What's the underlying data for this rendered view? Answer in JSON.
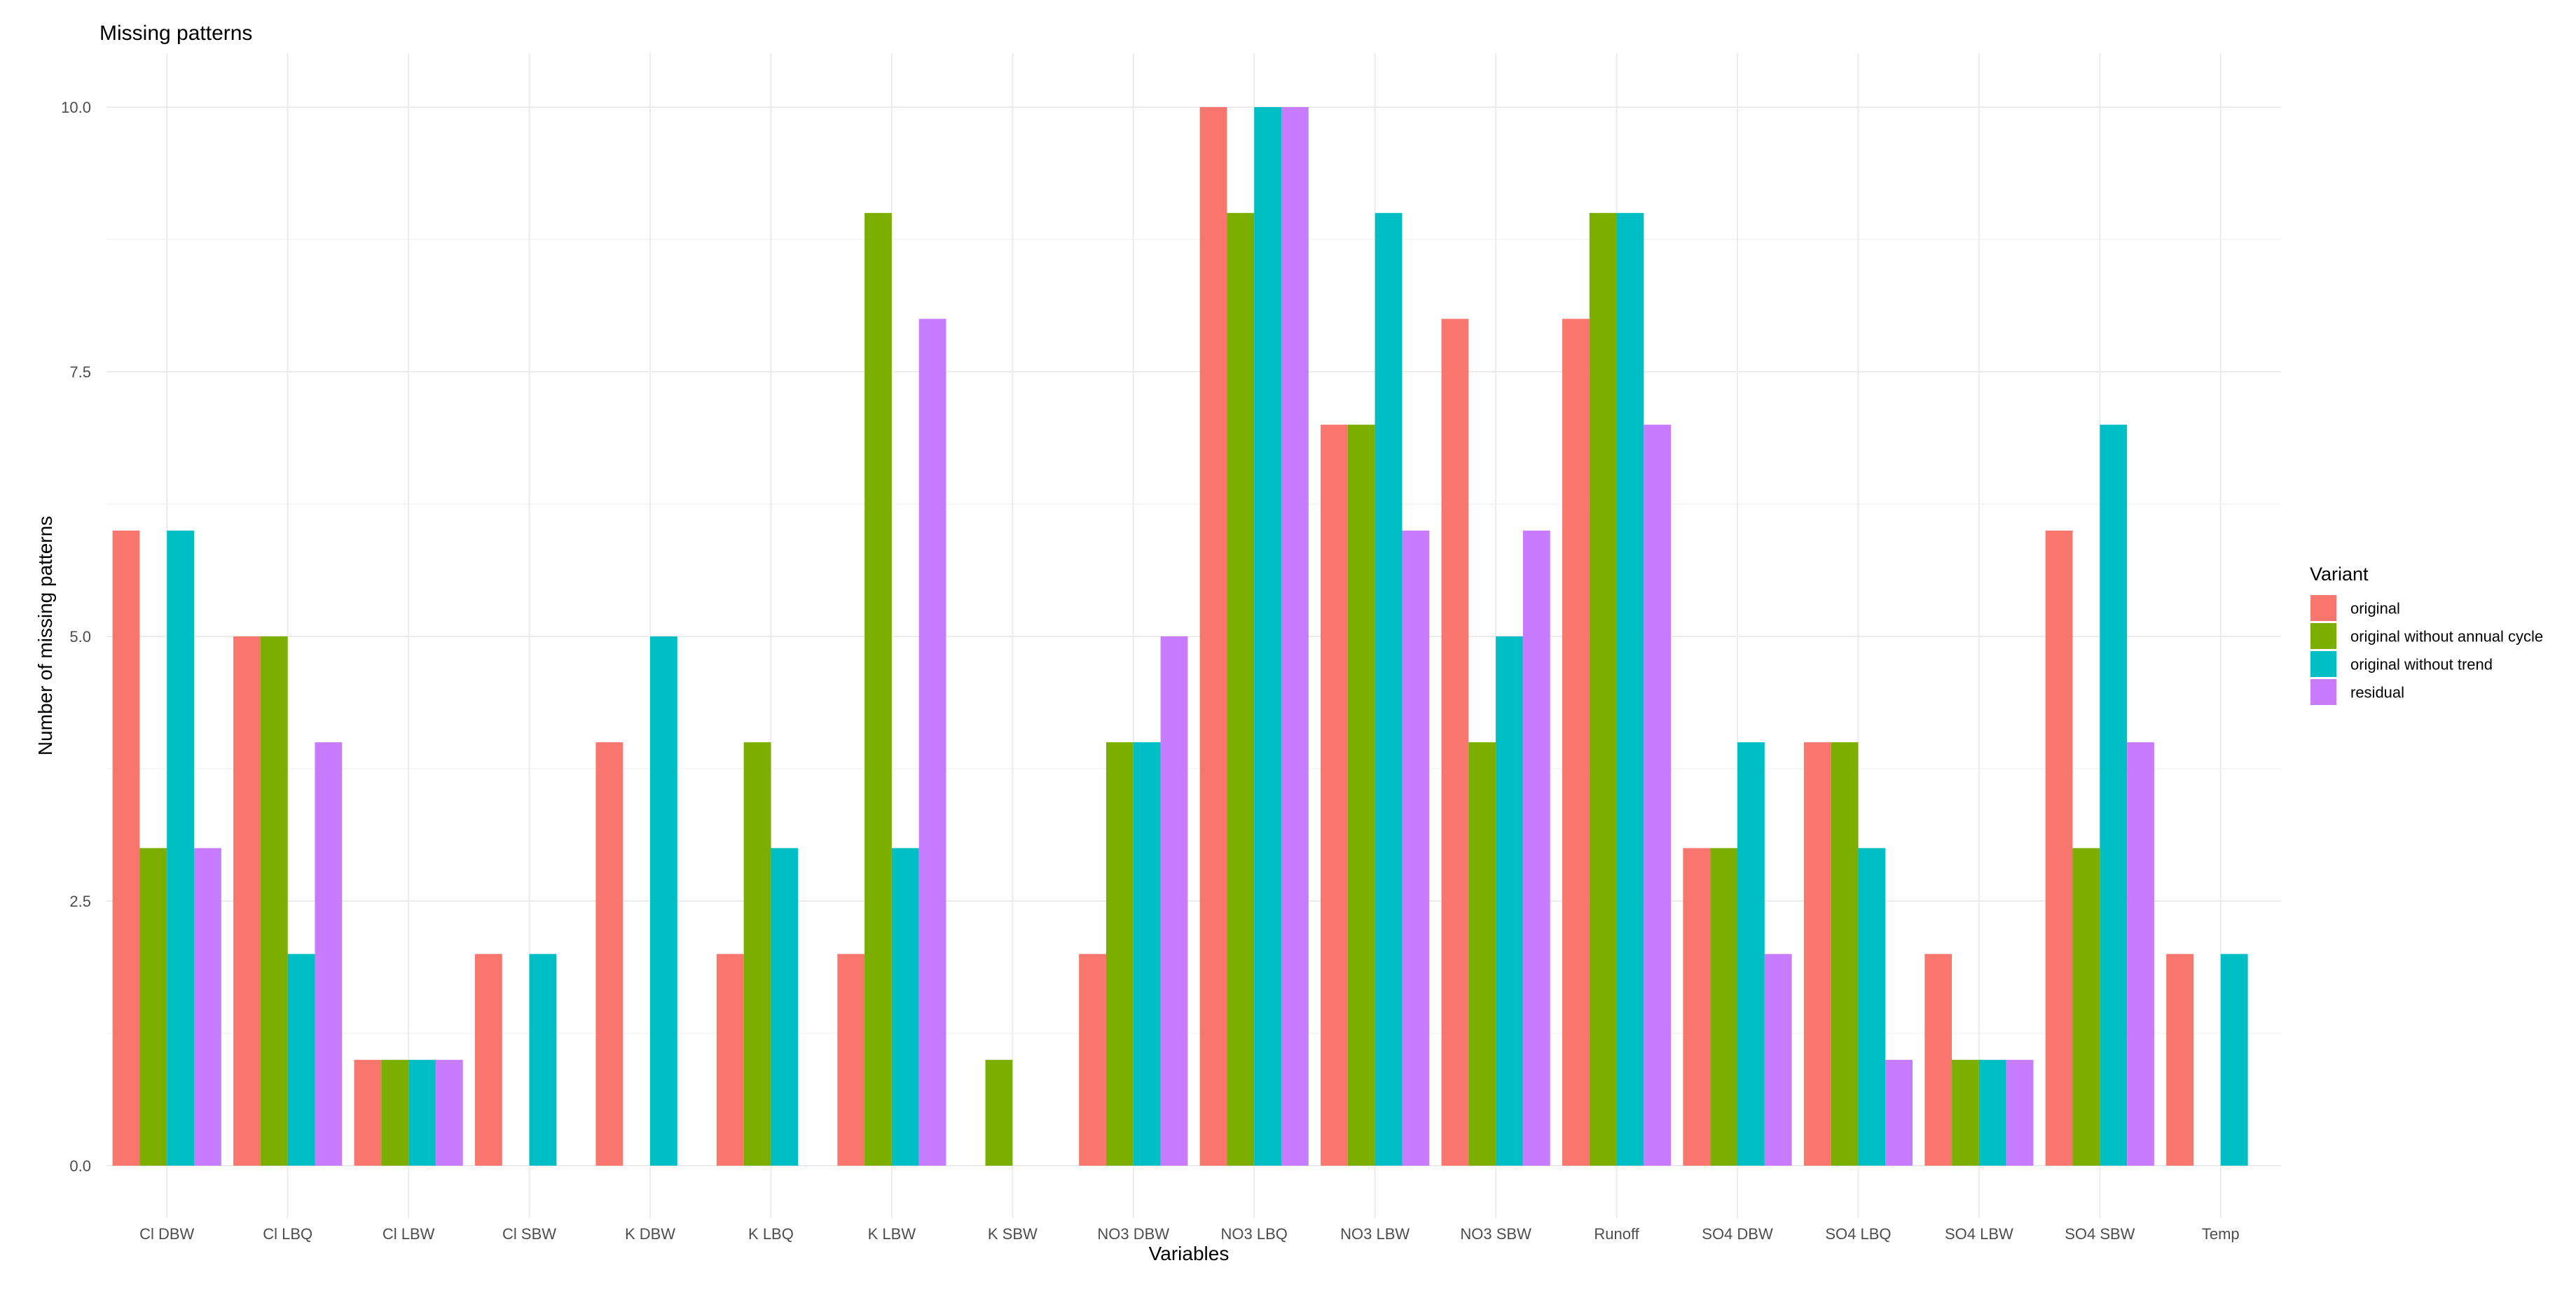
{
  "chart_data": {
    "type": "bar",
    "title": "Missing patterns",
    "xlabel": "Variables",
    "ylabel": "Number of missing patterns",
    "ylim": [
      -0.5,
      10.5
    ],
    "yticks": [
      0.0,
      2.5,
      5.0,
      7.5,
      10.0
    ],
    "ytick_labels": [
      "0.0",
      "2.5",
      "5.0",
      "7.5",
      "10.0"
    ],
    "grid": true,
    "legend": {
      "title": "Variant",
      "position": "right"
    },
    "categories": [
      "Cl DBW",
      "Cl LBQ",
      "Cl LBW",
      "Cl SBW",
      "K DBW",
      "K LBQ",
      "K LBW",
      "K SBW",
      "NO3 DBW",
      "NO3 LBQ",
      "NO3 LBW",
      "NO3 SBW",
      "Runoff",
      "SO4 DBW",
      "SO4 LBQ",
      "SO4 LBW",
      "SO4 SBW",
      "Temp"
    ],
    "series": [
      {
        "name": "original",
        "color": "#F8766D",
        "values": [
          6,
          5,
          1,
          2,
          4,
          2,
          2,
          null,
          2,
          10,
          7,
          8,
          8,
          3,
          4,
          2,
          6,
          2
        ]
      },
      {
        "name": "original without annual cycle",
        "color": "#7CAE00",
        "values": [
          3,
          5,
          1,
          null,
          null,
          4,
          9,
          1,
          4,
          9,
          7,
          4,
          9,
          3,
          4,
          1,
          3,
          null
        ]
      },
      {
        "name": "original without trend",
        "color": "#00BFC4",
        "values": [
          6,
          2,
          1,
          2,
          5,
          3,
          3,
          null,
          4,
          10,
          9,
          5,
          9,
          4,
          3,
          1,
          7,
          2
        ]
      },
      {
        "name": "residual",
        "color": "#C77CFF",
        "values": [
          3,
          4,
          1,
          null,
          null,
          null,
          8,
          null,
          5,
          10,
          6,
          6,
          7,
          2,
          1,
          1,
          4,
          null
        ]
      }
    ]
  }
}
